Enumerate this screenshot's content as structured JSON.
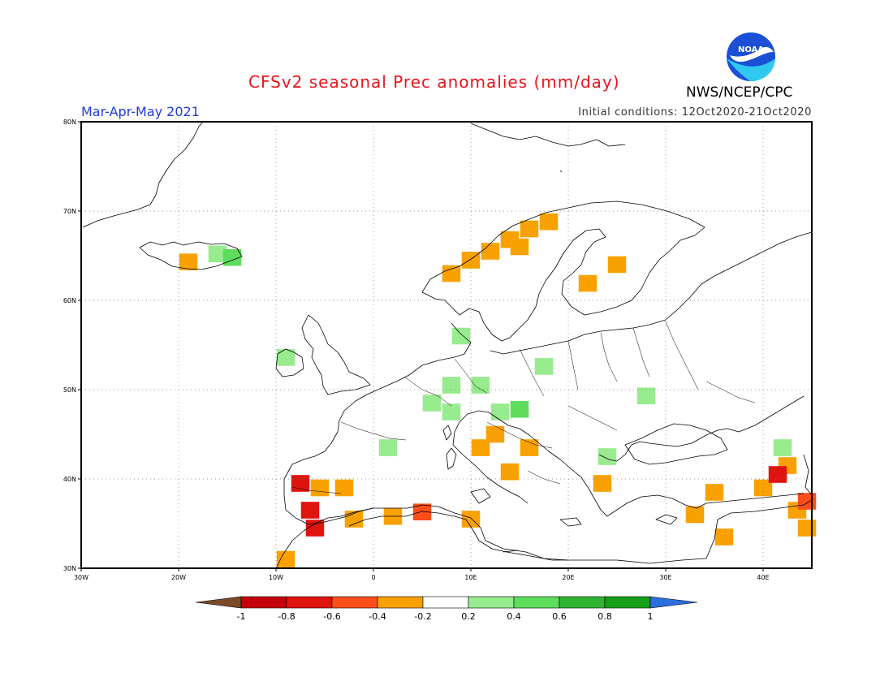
{
  "header": {
    "title": "CFSv2 seasonal Prec anomalies (mm/day)",
    "season": "Mar-Apr-May 2021",
    "initial_conditions": "Initial conditions: 12Oct2020-21Oct2020",
    "agency": "NWS/NCEP/CPC",
    "logo_text": "NOAA"
  },
  "map": {
    "lon_range": [
      -30,
      45
    ],
    "lat_range": [
      30,
      80
    ],
    "lon_ticks": [
      {
        "value": -30,
        "label": "30W"
      },
      {
        "value": -20,
        "label": "20W"
      },
      {
        "value": -10,
        "label": "10W"
      },
      {
        "value": 0,
        "label": "0"
      },
      {
        "value": 10,
        "label": "10E"
      },
      {
        "value": 20,
        "label": "20E"
      },
      {
        "value": 30,
        "label": "30E"
      },
      {
        "value": 40,
        "label": "40E"
      }
    ],
    "lat_ticks": [
      {
        "value": 30,
        "label": "30N"
      },
      {
        "value": 40,
        "label": "40N"
      },
      {
        "value": 50,
        "label": "50N"
      },
      {
        "value": 60,
        "label": "60N"
      },
      {
        "value": 70,
        "label": "70N"
      },
      {
        "value": 80,
        "label": "80N"
      }
    ],
    "grid": "dotted"
  },
  "colorbar": {
    "labels": [
      "-1",
      "-0.8",
      "-0.6",
      "-0.4",
      "-0.2",
      "0.2",
      "0.4",
      "0.6",
      "0.8",
      "1"
    ],
    "colors": [
      "#7a4a2a",
      "#c4000b",
      "#e0140f",
      "#fb4e1b",
      "#f8a100",
      "#ffffff",
      "#98eb8f",
      "#5ddd5b",
      "#31b432",
      "#179f1a",
      "#2b6ee0"
    ]
  },
  "chart_data": {
    "type": "heatmap",
    "variable": "Precipitation anomaly (mm/day)",
    "cell_deg": 1.875,
    "cells": [
      {
        "lon": -19,
        "lat": 64.3,
        "value": -0.3
      },
      {
        "lon": -16,
        "lat": 65.2,
        "value": 0.3
      },
      {
        "lon": -14.5,
        "lat": 64.8,
        "value": 0.4
      },
      {
        "lon": 8,
        "lat": 63.0,
        "value": -0.3
      },
      {
        "lon": 10,
        "lat": 64.5,
        "value": -0.3
      },
      {
        "lon": 12,
        "lat": 65.5,
        "value": -0.3
      },
      {
        "lon": 14,
        "lat": 66.8,
        "value": -0.3
      },
      {
        "lon": 16,
        "lat": 68.0,
        "value": -0.3
      },
      {
        "lon": 18,
        "lat": 68.8,
        "value": -0.3
      },
      {
        "lon": 15,
        "lat": 66.0,
        "value": -0.3
      },
      {
        "lon": 22,
        "lat": 61.9,
        "value": -0.3
      },
      {
        "lon": 25,
        "lat": 64.0,
        "value": -0.3
      },
      {
        "lon": -9,
        "lat": 53.6,
        "value": 0.3
      },
      {
        "lon": 9,
        "lat": 56.0,
        "value": 0.3
      },
      {
        "lon": 17.5,
        "lat": 52.6,
        "value": 0.3
      },
      {
        "lon": 8,
        "lat": 50.5,
        "value": 0.3
      },
      {
        "lon": 11,
        "lat": 50.5,
        "value": 0.3
      },
      {
        "lon": 6,
        "lat": 48.5,
        "value": 0.3
      },
      {
        "lon": 8,
        "lat": 47.5,
        "value": 0.3
      },
      {
        "lon": 13,
        "lat": 47.5,
        "value": 0.3
      },
      {
        "lon": 15,
        "lat": 47.8,
        "value": 0.5
      },
      {
        "lon": 28,
        "lat": 49.3,
        "value": 0.3
      },
      {
        "lon": 1.5,
        "lat": 43.5,
        "value": 0.3
      },
      {
        "lon": 12.5,
        "lat": 45.0,
        "value": -0.3
      },
      {
        "lon": 11,
        "lat": 43.5,
        "value": -0.3
      },
      {
        "lon": 16,
        "lat": 43.5,
        "value": -0.3
      },
      {
        "lon": 14,
        "lat": 40.8,
        "value": -0.3
      },
      {
        "lon": 24,
        "lat": 42.5,
        "value": 0.3
      },
      {
        "lon": 23.5,
        "lat": 39.5,
        "value": -0.3
      },
      {
        "lon": -7.5,
        "lat": 39.5,
        "value": -0.7
      },
      {
        "lon": -5.5,
        "lat": 39.0,
        "value": -0.3
      },
      {
        "lon": -3,
        "lat": 39.0,
        "value": -0.3
      },
      {
        "lon": -6.5,
        "lat": 36.5,
        "value": -0.7
      },
      {
        "lon": -6,
        "lat": 34.5,
        "value": -0.7
      },
      {
        "lon": -9,
        "lat": 31.0,
        "value": -0.3
      },
      {
        "lon": -2,
        "lat": 35.5,
        "value": -0.3
      },
      {
        "lon": 2,
        "lat": 35.8,
        "value": -0.3
      },
      {
        "lon": 5,
        "lat": 36.3,
        "value": -0.5
      },
      {
        "lon": 10,
        "lat": 35.5,
        "value": -0.3
      },
      {
        "lon": 35,
        "lat": 38.5,
        "value": -0.3
      },
      {
        "lon": 33,
        "lat": 36.0,
        "value": -0.3
      },
      {
        "lon": 36,
        "lat": 33.5,
        "value": -0.3
      },
      {
        "lon": 40,
        "lat": 39.0,
        "value": -0.3
      },
      {
        "lon": 42.5,
        "lat": 41.5,
        "value": -0.3
      },
      {
        "lon": 41.5,
        "lat": 40.5,
        "value": -0.6
      },
      {
        "lon": 42,
        "lat": 43.5,
        "value": 0.3
      },
      {
        "lon": 43.5,
        "lat": 36.5,
        "value": -0.3
      },
      {
        "lon": 44.5,
        "lat": 37.5,
        "value": -0.5
      },
      {
        "lon": 44.5,
        "lat": 34.5,
        "value": -0.3
      }
    ]
  }
}
